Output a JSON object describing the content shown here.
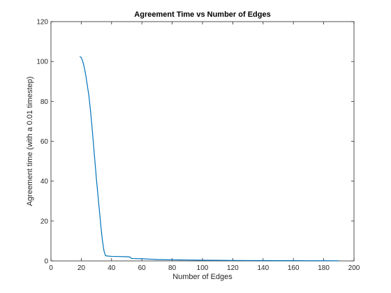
{
  "chart_data": {
    "type": "line",
    "title": "Agreement Time vs Number of Edges",
    "xlabel": "Number of Edges",
    "ylabel": "Agreement time (with a 0.01 timestep)",
    "xlim": [
      0,
      200
    ],
    "ylim": [
      0,
      120
    ],
    "xticks": [
      0,
      20,
      40,
      60,
      80,
      100,
      120,
      140,
      160,
      180,
      200
    ],
    "yticks": [
      0,
      20,
      40,
      60,
      80,
      100,
      120
    ],
    "grid": false,
    "legend": "none",
    "series": [
      {
        "color": "#0072bd",
        "x": [
          19,
          20,
          21,
          22,
          23,
          24,
          25,
          26,
          27,
          28,
          29,
          30,
          31,
          32,
          33,
          34,
          35,
          36,
          37,
          38,
          40,
          45,
          50,
          52,
          53,
          54,
          60,
          65,
          70,
          80,
          90,
          100,
          110,
          120,
          130,
          140,
          150,
          160,
          170,
          180,
          190
        ],
        "y": [
          102.5,
          102,
          100,
          97,
          93,
          88,
          83,
          76,
          68,
          59,
          50,
          41,
          33,
          25,
          17,
          10,
          5,
          2.6,
          2.5,
          2.4,
          2.3,
          2.2,
          2.1,
          2.0,
          1.3,
          1.2,
          1.1,
          0.9,
          0.7,
          0.55,
          0.45,
          0.35,
          0.3,
          0.25,
          0.2,
          0.17,
          0.14,
          0.12,
          0.1,
          0.08,
          0.06
        ]
      }
    ]
  }
}
